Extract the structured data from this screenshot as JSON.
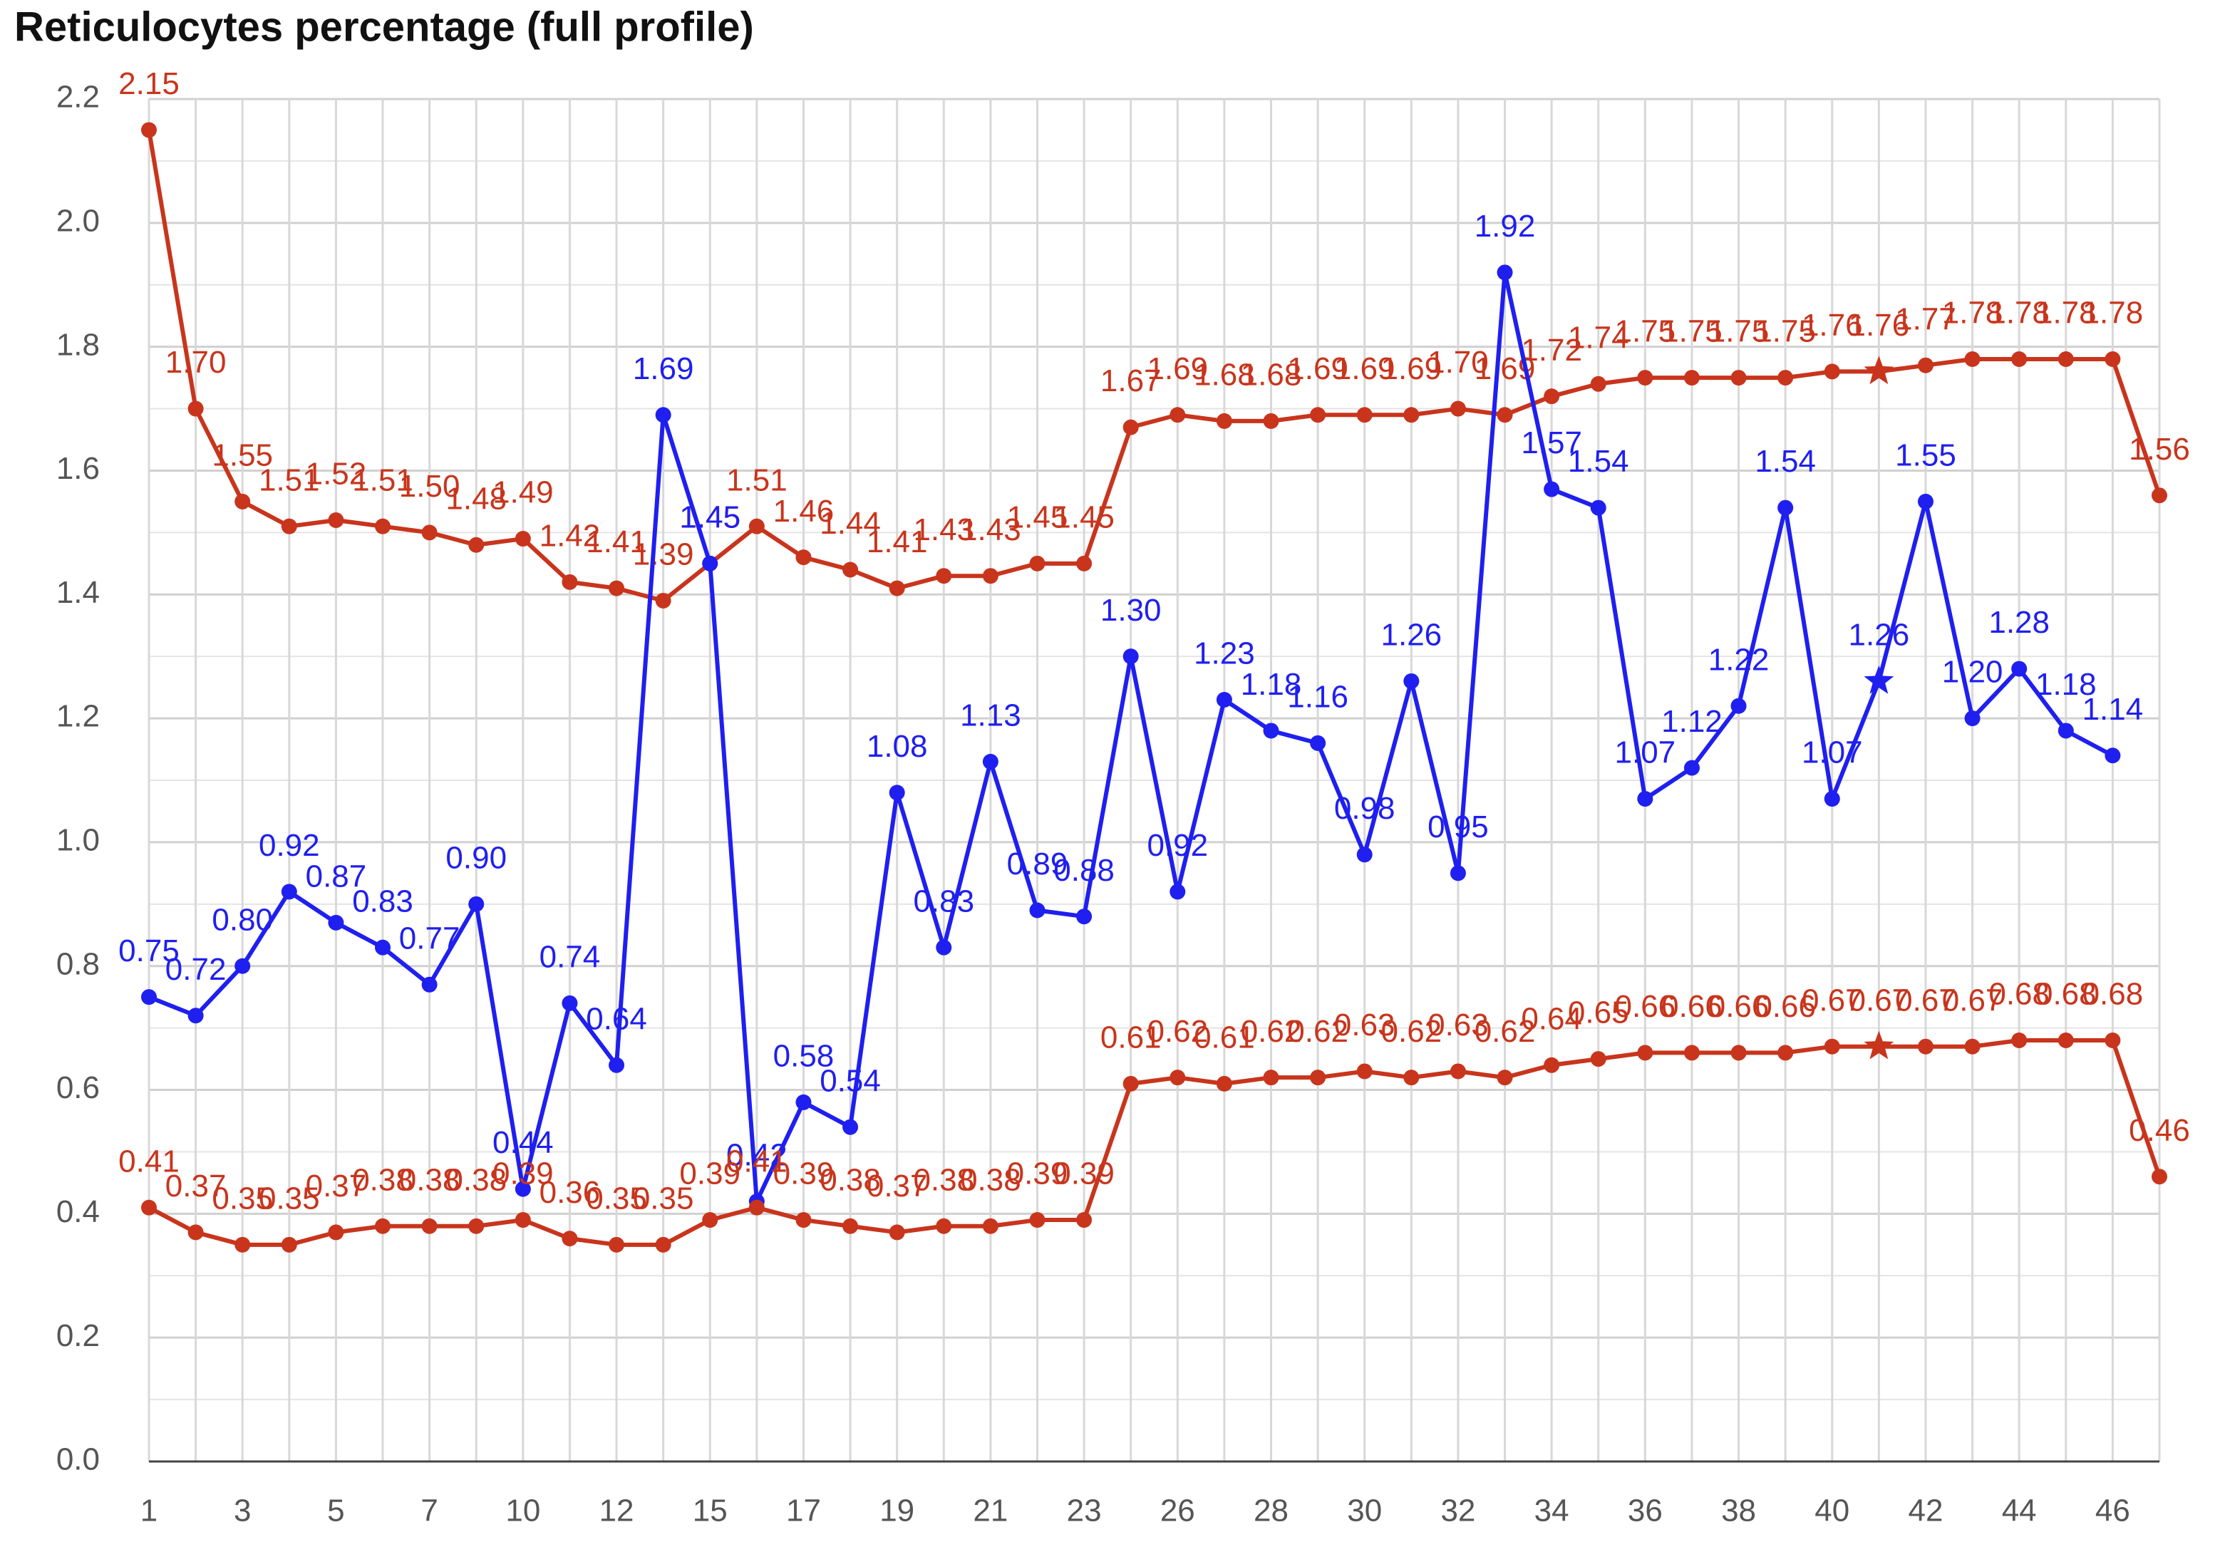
{
  "chart_data": {
    "type": "line",
    "title": "Reticulocytes percentage (full profile)",
    "categories": [
      "1",
      null,
      "3",
      null,
      "5",
      null,
      "7",
      null,
      "10",
      null,
      "12",
      null,
      "15",
      null,
      "17",
      null,
      "19",
      null,
      "21",
      null,
      "23",
      null,
      "26",
      null,
      "28",
      null,
      "30",
      null,
      "32",
      null,
      "34",
      null,
      "36",
      null,
      "38",
      null,
      "40",
      null,
      "42",
      null,
      "44",
      null,
      "46",
      null
    ],
    "series": [
      {
        "color": "#c8351c",
        "values": [
          2.15,
          1.7,
          1.55,
          1.51,
          1.52,
          1.51,
          1.5,
          1.48,
          1.49,
          1.42,
          1.41,
          1.39,
          1.45,
          1.51,
          1.46,
          1.44,
          1.41,
          1.43,
          1.43,
          1.45,
          1.45,
          1.67,
          1.69,
          1.68,
          1.68,
          1.69,
          1.69,
          1.69,
          1.7,
          1.69,
          1.72,
          1.74,
          1.75,
          1.75,
          1.75,
          1.75,
          1.76,
          1.76,
          1.77,
          1.78,
          1.78,
          1.78,
          1.78,
          1.56
        ],
        "value_labels": [
          "2.15",
          "1.70",
          "1.55",
          "1.51",
          "1.52",
          "1.51",
          "1.50",
          "1.48",
          "1.49",
          "1.42",
          "1.41",
          "1.39",
          "1.45",
          "1.51",
          "1.46",
          "1.44",
          "1.41",
          "1.43",
          "1.43",
          "1.45",
          "1.45",
          "1.67",
          "1.69",
          "1.68",
          "1.68",
          "1.69",
          "1.69",
          "1.69",
          "1.70",
          "1.69",
          "1.72",
          "1.74",
          "1.75",
          "1.75",
          "1.75",
          "1.75",
          "1.76",
          "1.76",
          "1.77",
          "1.78",
          "1.78",
          "1.78",
          "1.78",
          "1.56"
        ]
      },
      {
        "color": "#1f1ff0",
        "values": [
          0.75,
          0.72,
          0.8,
          0.92,
          0.87,
          0.83,
          0.77,
          0.9,
          0.44,
          0.74,
          0.64,
          1.69,
          1.45,
          0.42,
          0.58,
          0.54,
          1.08,
          0.83,
          1.13,
          0.89,
          0.88,
          1.3,
          0.92,
          1.23,
          1.18,
          1.16,
          0.98,
          1.26,
          0.95,
          1.92,
          1.57,
          1.54,
          1.07,
          1.12,
          1.22,
          1.54,
          1.07,
          1.26,
          1.55,
          1.2,
          1.28,
          1.18,
          1.14,
          null
        ],
        "value_labels": [
          "0.75",
          "0.72",
          "0.80",
          "0.92",
          "0.87",
          "0.83",
          "0.77",
          "0.90",
          "0.44",
          "0.74",
          "0.64",
          "1.69",
          "1.45",
          "0.42",
          "0.58",
          "0.54",
          "1.08",
          "0.83",
          "1.13",
          "0.89",
          "0.88",
          "1.30",
          "0.92",
          "1.23",
          "1.18",
          "1.16",
          "0.98",
          "1.26",
          "0.95",
          "1.92",
          "1.57",
          "1.54",
          "1.07",
          "1.12",
          "1.22",
          "1.54",
          "1.07",
          "1.26",
          "1.55",
          "1.20",
          "1.28",
          "1.18",
          "1.14",
          null
        ]
      },
      {
        "color": "#c8351c",
        "values": [
          0.41,
          0.37,
          0.35,
          0.35,
          0.37,
          0.38,
          0.38,
          0.38,
          0.39,
          0.36,
          0.35,
          0.35,
          0.39,
          0.41,
          0.39,
          0.38,
          0.37,
          0.38,
          0.38,
          0.39,
          0.39,
          0.61,
          0.62,
          0.61,
          0.62,
          0.62,
          0.63,
          0.62,
          0.63,
          0.62,
          0.64,
          0.65,
          0.66,
          0.66,
          0.66,
          0.66,
          0.67,
          0.67,
          0.67,
          0.67,
          0.68,
          0.68,
          0.68,
          0.46
        ],
        "value_labels": [
          "0.41",
          "0.37",
          "0.35",
          "0.35",
          "0.37",
          "0.38",
          "0.38",
          "0.38",
          "0.39",
          "0.36",
          "0.35",
          "0.35",
          "0.39",
          "0.41",
          "0.39",
          "0.38",
          "0.37",
          "0.38",
          "0.38",
          "0.39",
          "0.39",
          "0.61",
          "0.62",
          "0.61",
          "0.62",
          "0.62",
          "0.63",
          "0.62",
          "0.63",
          "0.62",
          "0.64",
          "0.65",
          "0.66",
          "0.66",
          "0.66",
          "0.66",
          "0.67",
          "0.67",
          "0.67",
          "0.67",
          "0.68",
          "0.68",
          "0.68",
          "0.46"
        ]
      }
    ],
    "highlight": 37,
    "ylim": [
      0,
      2.2
    ],
    "yticks": [
      {
        "value": 0,
        "label": "0.0"
      },
      0.2,
      0.4,
      0.6,
      0.8,
      {
        "value": 1,
        "label": "1.0"
      },
      1.2,
      1.4,
      1.6,
      1.8,
      {
        "value": 2,
        "label": "2.0"
      },
      2.2
    ],
    "grid": true,
    "minor_grid": true
  }
}
